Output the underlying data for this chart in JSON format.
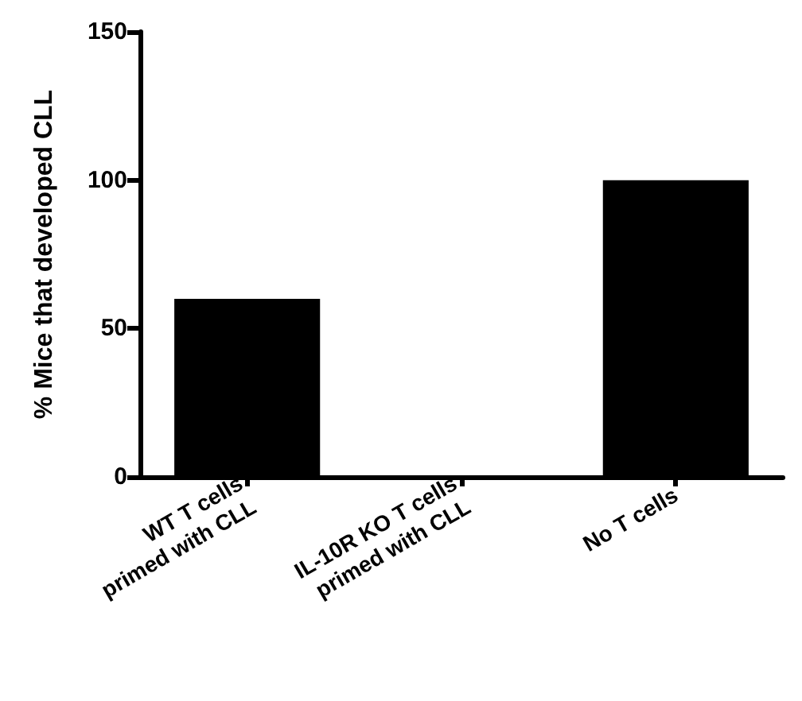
{
  "chart_data": {
    "type": "bar",
    "ylabel": "% Mice that developed CLL",
    "categories": [
      "WT T cells\nprimed with CLL",
      "IL-10R KO T cells\nprimed with CLL",
      "No T cells"
    ],
    "values": [
      60,
      0,
      100
    ],
    "color": "#000000",
    "ylim": [
      0,
      150
    ],
    "yticks": [
      0,
      50,
      100,
      150
    ],
    "grid": false
  }
}
